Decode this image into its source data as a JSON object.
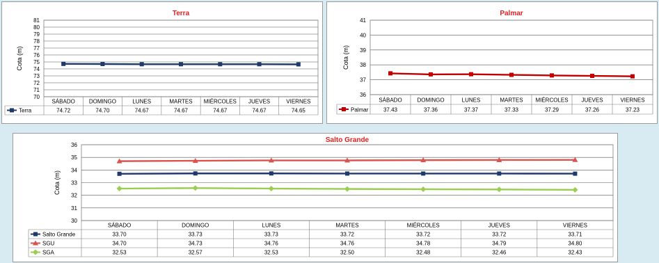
{
  "chart_data": [
    {
      "type": "line",
      "title": "Terra",
      "ylabel": "Cota (m)",
      "xlabel": "",
      "ylim": [
        70,
        81
      ],
      "ytick_step": 1,
      "grid": true,
      "legend": "data-table",
      "categories": [
        "SÁBADO",
        "DOMINGO",
        "LUNES",
        "MARTES",
        "MIÉRCOLES",
        "JUEVES",
        "VIERNES"
      ],
      "series": [
        {
          "name": "Terra",
          "color": "#1f3a68",
          "marker": "square",
          "values": [
            74.72,
            74.7,
            74.67,
            74.67,
            74.67,
            74.67,
            74.65
          ],
          "labels": [
            "74.72",
            "74.70",
            "74.67",
            "74.67",
            "74.67",
            "74.67",
            "74.65"
          ]
        }
      ]
    },
    {
      "type": "line",
      "title": "Palmar",
      "ylabel": "Cota (m)",
      "xlabel": "",
      "ylim": [
        36,
        41
      ],
      "ytick_step": 1,
      "grid": true,
      "legend": "data-table",
      "categories": [
        "SÁBADO",
        "DOMINGO",
        "LUNES",
        "MARTES",
        "MIÉRCOLES",
        "JUEVES",
        "VIERNES"
      ],
      "series": [
        {
          "name": "Palmar",
          "color": "#c00000",
          "marker": "square",
          "values": [
            37.43,
            37.36,
            37.37,
            37.33,
            37.29,
            37.26,
            37.23
          ],
          "labels": [
            "37.43",
            "37.36",
            "37.37",
            "37.33",
            "37.29",
            "37.26",
            "37.23"
          ]
        }
      ]
    },
    {
      "type": "line",
      "title": "Salto Grande",
      "ylabel": "Cota (m)",
      "xlabel": "",
      "ylim": [
        30,
        36
      ],
      "ytick_step": 1,
      "grid": true,
      "legend": "data-table",
      "categories": [
        "SÁBADO",
        "DOMINGO",
        "LUNES",
        "MARTES",
        "MIÉRCOLES",
        "JUEVES",
        "VIERNES"
      ],
      "series": [
        {
          "name": "Salto Grande",
          "color": "#1f3a68",
          "marker": "square",
          "values": [
            33.7,
            33.73,
            33.73,
            33.72,
            33.72,
            33.72,
            33.71
          ],
          "labels": [
            "33.70",
            "33.73",
            "33.73",
            "33.72",
            "33.72",
            "33.72",
            "33.71"
          ]
        },
        {
          "name": "SGU",
          "color": "#d9534f",
          "marker": "triangle",
          "values": [
            34.7,
            34.73,
            34.76,
            34.76,
            34.78,
            34.79,
            34.8
          ],
          "labels": [
            "34.70",
            "34.73",
            "34.76",
            "34.76",
            "34.78",
            "34.79",
            "34.80"
          ]
        },
        {
          "name": "SGA",
          "color": "#9acd50",
          "marker": "diamond",
          "values": [
            32.53,
            32.57,
            32.53,
            32.5,
            32.48,
            32.46,
            32.43
          ],
          "labels": [
            "32.53",
            "32.57",
            "32.53",
            "32.50",
            "32.48",
            "32.46",
            "32.43"
          ]
        }
      ]
    }
  ],
  "style": {
    "title_color": "#e02020",
    "background": "#d9ebf2",
    "grid_color": "#555555"
  }
}
